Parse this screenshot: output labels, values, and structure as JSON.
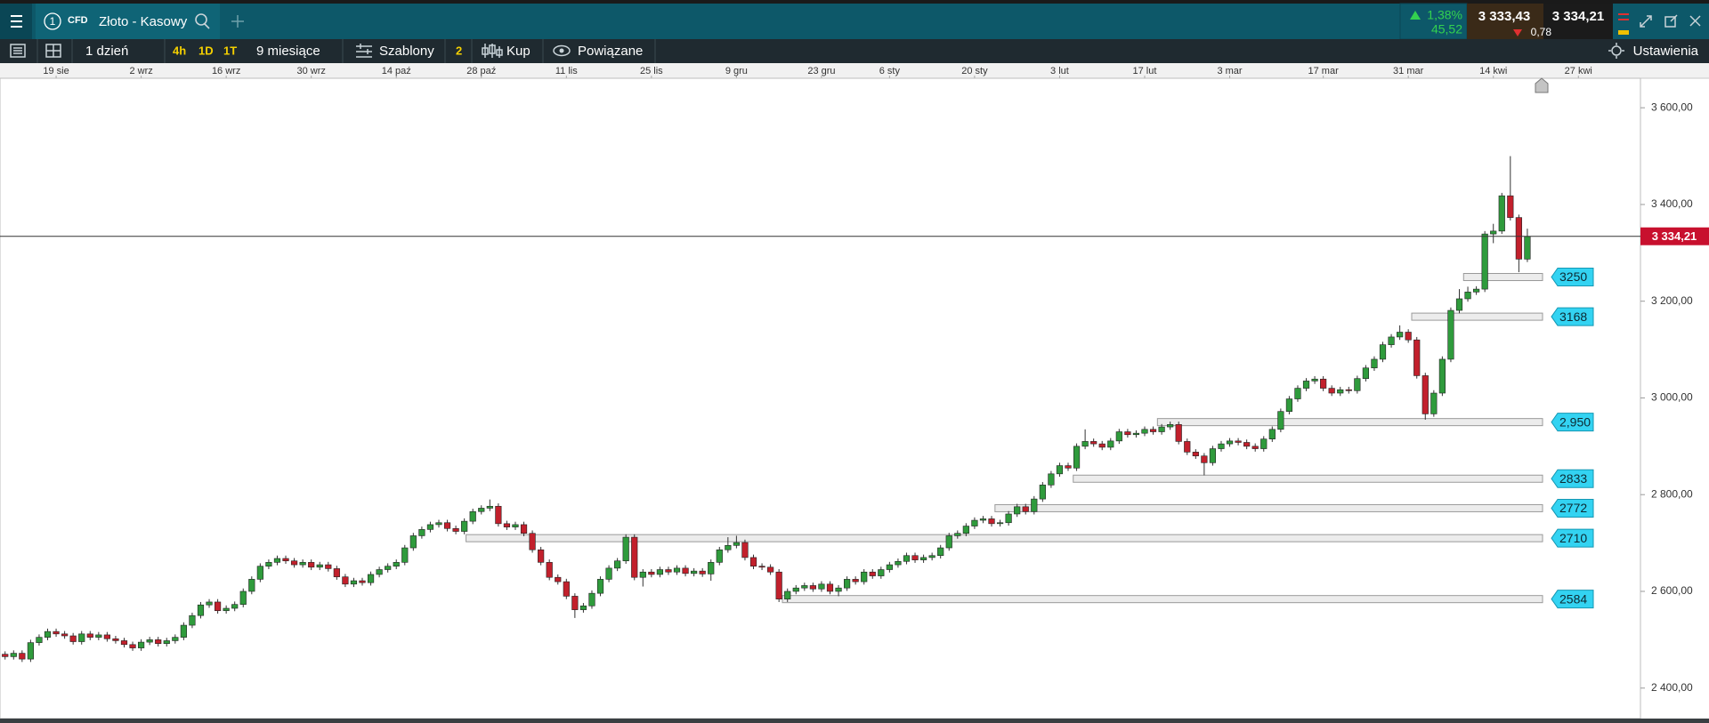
{
  "header": {
    "tab_number": "1",
    "instrument_type": "CFD",
    "instrument": "Złoto - Kasowy",
    "change_percent": "1,38%",
    "change": "45,52",
    "bid": "3 333,43",
    "spread": "0,78",
    "ask": "3 334,21"
  },
  "toolbar": {
    "interval": "1 dzień",
    "quick_intervals": [
      "4h",
      "1D",
      "1T"
    ],
    "range": "9 miesiące",
    "templates": "Szablony",
    "templates_count": "2",
    "buy": "Kup",
    "related": "Powiązane",
    "settings": "Ustawienia"
  },
  "chart_data": {
    "type": "candlestick",
    "up_color": "#2f9b3c",
    "down_color": "#c2202c",
    "xlim": [
      -0.6,
      192.3
    ],
    "ylim": [
      2337,
      3661
    ],
    "xticks": [
      {
        "value": 6,
        "label": "19 sie"
      },
      {
        "value": 16,
        "label": "2 wrz"
      },
      {
        "value": 26,
        "label": "16 wrz"
      },
      {
        "value": 36,
        "label": "30 wrz"
      },
      {
        "value": 46,
        "label": "14 paź"
      },
      {
        "value": 56,
        "label": "28 paź"
      },
      {
        "value": 66,
        "label": "11 lis"
      },
      {
        "value": 76,
        "label": "25 lis"
      },
      {
        "value": 86,
        "label": "9 gru"
      },
      {
        "value": 96,
        "label": "23 gru"
      },
      {
        "value": 104,
        "label": "6 sty"
      },
      {
        "value": 114,
        "label": "20 sty"
      },
      {
        "value": 124,
        "label": "3 lut"
      },
      {
        "value": 134,
        "label": "17 lut"
      },
      {
        "value": 144,
        "label": "3 mar"
      },
      {
        "value": 155,
        "label": "17 mar"
      },
      {
        "value": 165,
        "label": "31 mar"
      },
      {
        "value": 175,
        "label": "14 kwi"
      },
      {
        "value": 185,
        "label": "27 kwi"
      }
    ],
    "yticks": [
      {
        "value": 2400,
        "label": "2 400,00"
      },
      {
        "value": 2600,
        "label": "2 600,00"
      },
      {
        "value": 2800,
        "label": "2 800,00"
      },
      {
        "value": 3000,
        "label": "3 000,00"
      },
      {
        "value": 3200,
        "label": "3 200,00"
      },
      {
        "value": 3400,
        "label": "3 400,00"
      },
      {
        "value": 3600,
        "label": "3 600,00"
      }
    ],
    "open": [
      2470,
      2465,
      2472,
      2460,
      2494,
      2505,
      2517,
      2512,
      2508,
      2496,
      2512,
      2505,
      2510,
      2502,
      2498,
      2490,
      2483,
      2495,
      2500,
      2492,
      2498,
      2505,
      2530,
      2550,
      2572,
      2578,
      2560,
      2565,
      2573,
      2600,
      2625,
      2652,
      2660,
      2668,
      2663,
      2655,
      2660,
      2650,
      2655,
      2647,
      2630,
      2615,
      2622,
      2618,
      2635,
      2645,
      2652,
      2660,
      2690,
      2715,
      2728,
      2738,
      2742,
      2730,
      2724,
      2745,
      2765,
      2772,
      2776,
      2740,
      2733,
      2738,
      2720,
      2686,
      2660,
      2629,
      2620,
      2590,
      2562,
      2570,
      2596,
      2625,
      2648,
      2663,
      2712,
      2629,
      2640,
      2635,
      2645,
      2640,
      2648,
      2637,
      2642,
      2636,
      2660,
      2686,
      2695,
      2701,
      2670,
      2652,
      2650,
      2640,
      2584,
      2600,
      2607,
      2612,
      2605,
      2615,
      2600,
      2607,
      2625,
      2620,
      2640,
      2632,
      2645,
      2655,
      2662,
      2674,
      2665,
      2670,
      2674,
      2690,
      2715,
      2720,
      2735,
      2747,
      2750,
      2740,
      2742,
      2760,
      2775,
      2765,
      2791,
      2820,
      2843,
      2860,
      2855,
      2900,
      2910,
      2905,
      2898,
      2911,
      2930,
      2924,
      2927,
      2935,
      2930,
      2940,
      2945,
      2910,
      2888,
      2880,
      2866,
      2895,
      2905,
      2911,
      2908,
      2900,
      2895,
      2915,
      2935,
      2972,
      2998,
      3020,
      3035,
      3039,
      3020,
      3010,
      3017,
      3015,
      3040,
      3062,
      3080,
      3110,
      3126,
      3136,
      3120,
      3046,
      2967,
      3010,
      3080,
      3181,
      3205,
      3219,
      3225,
      3339,
      3345,
      3418,
      3373,
      3287
    ],
    "high": [
      2476,
      2478,
      2478,
      2500,
      2511,
      2523,
      2523,
      2518,
      2514,
      2518,
      2518,
      2516,
      2516,
      2508,
      2504,
      2496,
      2501,
      2506,
      2506,
      2504,
      2511,
      2536,
      2556,
      2578,
      2584,
      2584,
      2571,
      2579,
      2606,
      2631,
      2658,
      2666,
      2674,
      2674,
      2669,
      2666,
      2666,
      2661,
      2661,
      2653,
      2636,
      2628,
      2628,
      2641,
      2651,
      2658,
      2666,
      2696,
      2721,
      2734,
      2744,
      2748,
      2748,
      2736,
      2751,
      2771,
      2778,
      2790,
      2782,
      2746,
      2744,
      2744,
      2726,
      2692,
      2666,
      2635,
      2626,
      2596,
      2576,
      2602,
      2631,
      2654,
      2669,
      2718,
      2718,
      2646,
      2646,
      2651,
      2651,
      2654,
      2654,
      2648,
      2648,
      2666,
      2692,
      2712,
      2715,
      2707,
      2676,
      2658,
      2656,
      2646,
      2606,
      2613,
      2618,
      2618,
      2621,
      2621,
      2613,
      2631,
      2631,
      2646,
      2646,
      2651,
      2661,
      2668,
      2680,
      2680,
      2676,
      2680,
      2696,
      2721,
      2726,
      2741,
      2753,
      2756,
      2756,
      2748,
      2766,
      2781,
      2781,
      2797,
      2826,
      2849,
      2866,
      2866,
      2906,
      2935,
      2916,
      2911,
      2917,
      2936,
      2936,
      2933,
      2941,
      2941,
      2946,
      2951,
      2951,
      2916,
      2894,
      2886,
      2901,
      2911,
      2917,
      2917,
      2914,
      2906,
      2921,
      2941,
      2978,
      3004,
      3026,
      3041,
      3045,
      3045,
      3026,
      3023,
      3023,
      3046,
      3068,
      3086,
      3116,
      3132,
      3150,
      3142,
      3126,
      3052,
      3016,
      3086,
      3187,
      3225,
      3230,
      3231,
      3345,
      3360,
      3424,
      3500,
      3379,
      3350
    ],
    "low": [
      2459,
      2459,
      2454,
      2454,
      2488,
      2499,
      2506,
      2502,
      2490,
      2490,
      2499,
      2499,
      2496,
      2492,
      2484,
      2477,
      2477,
      2489,
      2486,
      2486,
      2492,
      2499,
      2524,
      2544,
      2566,
      2554,
      2554,
      2559,
      2567,
      2594,
      2619,
      2646,
      2654,
      2657,
      2649,
      2649,
      2644,
      2644,
      2641,
      2624,
      2609,
      2609,
      2612,
      2612,
      2629,
      2639,
      2646,
      2654,
      2684,
      2709,
      2722,
      2732,
      2724,
      2718,
      2718,
      2739,
      2759,
      2766,
      2734,
      2727,
      2727,
      2714,
      2680,
      2654,
      2623,
      2614,
      2584,
      2545,
      2556,
      2564,
      2590,
      2619,
      2642,
      2657,
      2623,
      2610,
      2629,
      2629,
      2634,
      2634,
      2631,
      2631,
      2630,
      2622,
      2654,
      2680,
      2689,
      2664,
      2646,
      2644,
      2634,
      2578,
      2578,
      2594,
      2601,
      2599,
      2599,
      2594,
      2590,
      2601,
      2614,
      2614,
      2626,
      2626,
      2639,
      2649,
      2656,
      2659,
      2659,
      2664,
      2668,
      2684,
      2709,
      2714,
      2729,
      2741,
      2734,
      2734,
      2736,
      2754,
      2759,
      2759,
      2785,
      2814,
      2837,
      2849,
      2849,
      2894,
      2899,
      2892,
      2892,
      2905,
      2918,
      2918,
      2921,
      2924,
      2924,
      2934,
      2904,
      2882,
      2874,
      2840,
      2860,
      2889,
      2899,
      2902,
      2894,
      2889,
      2889,
      2909,
      2929,
      2966,
      2992,
      3014,
      3029,
      3014,
      3004,
      3004,
      3009,
      3009,
      3034,
      3056,
      3074,
      3104,
      3120,
      3114,
      3040,
      2955,
      2961,
      3004,
      3074,
      3175,
      3199,
      3213,
      3219,
      3320,
      3339,
      3367,
      3260,
      3281
    ],
    "close": [
      2465,
      2472,
      2460,
      2494,
      2505,
      2517,
      2512,
      2508,
      2496,
      2512,
      2505,
      2510,
      2502,
      2498,
      2490,
      2483,
      2495,
      2500,
      2492,
      2498,
      2505,
      2530,
      2550,
      2572,
      2578,
      2560,
      2565,
      2573,
      2600,
      2625,
      2652,
      2660,
      2668,
      2663,
      2655,
      2660,
      2650,
      2655,
      2647,
      2630,
      2615,
      2622,
      2618,
      2635,
      2645,
      2652,
      2660,
      2690,
      2715,
      2728,
      2738,
      2742,
      2730,
      2724,
      2745,
      2765,
      2772,
      2776,
      2740,
      2733,
      2738,
      2720,
      2686,
      2660,
      2629,
      2620,
      2590,
      2562,
      2570,
      2596,
      2625,
      2648,
      2663,
      2712,
      2629,
      2640,
      2635,
      2645,
      2640,
      2648,
      2637,
      2642,
      2636,
      2660,
      2686,
      2695,
      2701,
      2670,
      2652,
      2650,
      2640,
      2584,
      2600,
      2607,
      2612,
      2605,
      2615,
      2600,
      2607,
      2625,
      2620,
      2640,
      2632,
      2645,
      2655,
      2662,
      2674,
      2665,
      2670,
      2674,
      2690,
      2715,
      2720,
      2735,
      2747,
      2750,
      2740,
      2742,
      2760,
      2775,
      2765,
      2791,
      2820,
      2843,
      2860,
      2855,
      2900,
      2910,
      2905,
      2898,
      2911,
      2930,
      2924,
      2927,
      2935,
      2930,
      2940,
      2945,
      2910,
      2888,
      2880,
      2866,
      2895,
      2905,
      2911,
      2908,
      2900,
      2895,
      2915,
      2935,
      2972,
      2998,
      3020,
      3035,
      3039,
      3020,
      3010,
      3017,
      3015,
      3040,
      3062,
      3080,
      3110,
      3126,
      3136,
      3120,
      3046,
      2967,
      3010,
      3080,
      3181,
      3205,
      3219,
      3225,
      3339,
      3345,
      3418,
      3373,
      3287,
      3334
    ],
    "zones": [
      {
        "value": 3250,
        "start": 171.5
      },
      {
        "value": 3168,
        "start": 165.4
      },
      {
        "value": 2950,
        "label": "2,950",
        "start": 135.5
      },
      {
        "value": 2833,
        "start": 125.6
      },
      {
        "value": 2772,
        "start": 116.4
      },
      {
        "value": 2710,
        "start": 54.2
      },
      {
        "value": 2584,
        "start": 91.4
      }
    ],
    "current_price": {
      "value": 3334.21,
      "label": "3 334,21"
    }
  }
}
